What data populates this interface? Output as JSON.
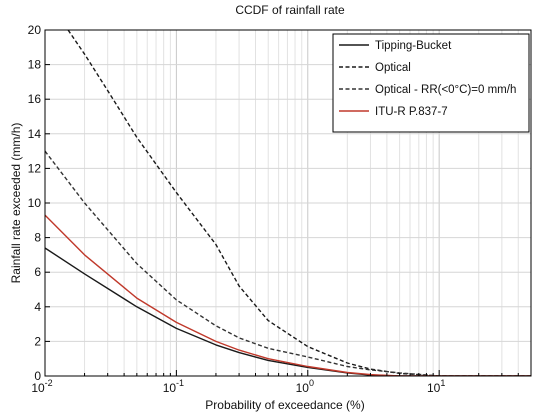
{
  "chart_data": {
    "type": "line",
    "title": "CCDF of rainfall rate",
    "xlabel": "Probability of exceedance (%)",
    "ylabel": "Rainfall rate exceeded  (mm/h)",
    "xscale": "log",
    "xlim": [
      0.01,
      50
    ],
    "ylim": [
      0,
      20
    ],
    "grid": true,
    "legend_position": "top-right",
    "x_ticks": [
      {
        "value": 0.01,
        "base": "10",
        "exp": "-2"
      },
      {
        "value": 0.1,
        "base": "10",
        "exp": "-1"
      },
      {
        "value": 1,
        "base": "10",
        "exp": "0"
      },
      {
        "value": 10,
        "base": "10",
        "exp": "1"
      }
    ],
    "y_ticks": [
      0,
      2,
      4,
      6,
      8,
      10,
      12,
      14,
      16,
      18,
      20
    ],
    "series": [
      {
        "name": "Tipping-Bucket",
        "color": "#1a1a1a",
        "dash": "solid",
        "points": [
          [
            0.01,
            7.4
          ],
          [
            0.02,
            5.9
          ],
          [
            0.05,
            4.0
          ],
          [
            0.1,
            2.75
          ],
          [
            0.2,
            1.8
          ],
          [
            0.3,
            1.35
          ],
          [
            0.5,
            0.9
          ],
          [
            1,
            0.5
          ],
          [
            2,
            0.18
          ],
          [
            3,
            0.05
          ],
          [
            5,
            0.0
          ],
          [
            10,
            0.0
          ],
          [
            50,
            0.0
          ]
        ]
      },
      {
        "name": "Optical",
        "color": "#1a1a1a",
        "dash": "dashed",
        "points": [
          [
            0.015,
            20.0
          ],
          [
            0.02,
            18.6
          ],
          [
            0.03,
            16.5
          ],
          [
            0.05,
            13.8
          ],
          [
            0.1,
            10.6
          ],
          [
            0.2,
            7.6
          ],
          [
            0.3,
            5.2
          ],
          [
            0.5,
            3.2
          ],
          [
            1,
            1.7
          ],
          [
            2,
            0.75
          ],
          [
            3,
            0.4
          ],
          [
            5,
            0.15
          ],
          [
            10,
            0.0
          ],
          [
            50,
            0.0
          ]
        ]
      },
      {
        "name": "Optical - RR(<0°C)=0 mm/h",
        "color": "#333333",
        "dash": "dashed",
        "points": [
          [
            0.01,
            13.0
          ],
          [
            0.02,
            10.0
          ],
          [
            0.05,
            6.5
          ],
          [
            0.1,
            4.4
          ],
          [
            0.2,
            2.9
          ],
          [
            0.3,
            2.2
          ],
          [
            0.5,
            1.6
          ],
          [
            1,
            1.1
          ],
          [
            2,
            0.55
          ],
          [
            3,
            0.35
          ],
          [
            5,
            0.18
          ],
          [
            10,
            0.0
          ],
          [
            50,
            0.0
          ]
        ]
      },
      {
        "name": "ITU-R P.837-7",
        "color": "#c0392b",
        "dash": "solid",
        "points": [
          [
            0.01,
            9.3
          ],
          [
            0.02,
            7.0
          ],
          [
            0.05,
            4.5
          ],
          [
            0.1,
            3.1
          ],
          [
            0.2,
            2.0
          ],
          [
            0.3,
            1.5
          ],
          [
            0.5,
            1.0
          ],
          [
            1,
            0.55
          ],
          [
            2,
            0.2
          ],
          [
            3,
            0.08
          ],
          [
            5,
            0.0
          ],
          [
            10,
            0.0
          ],
          [
            50,
            0.0
          ]
        ]
      }
    ]
  }
}
